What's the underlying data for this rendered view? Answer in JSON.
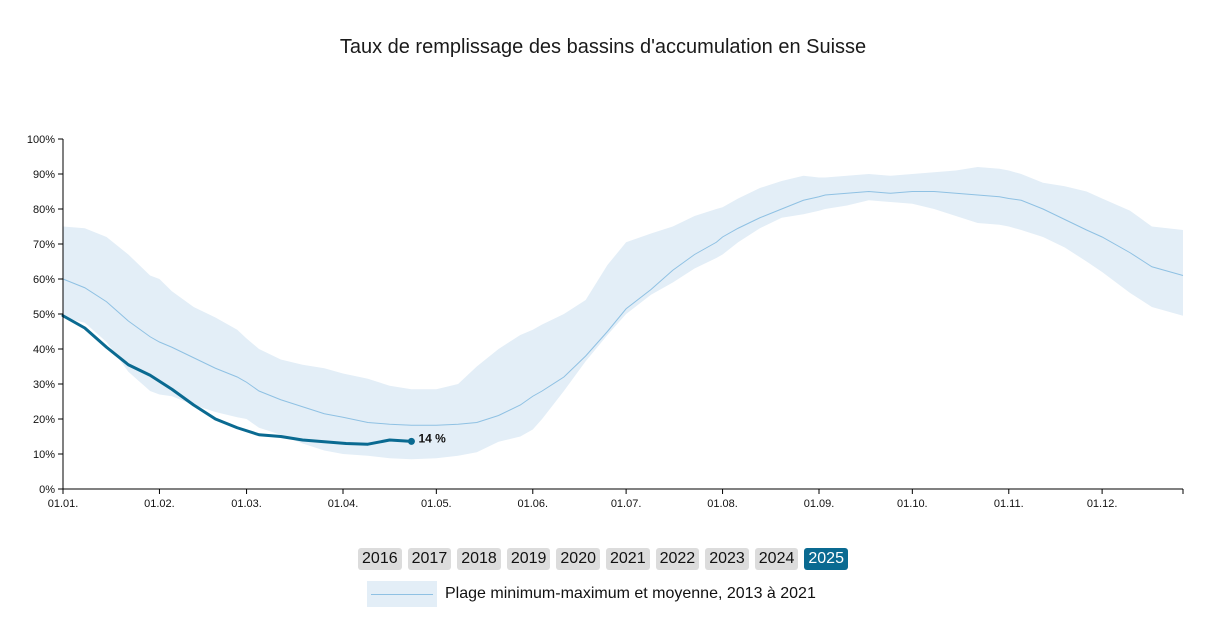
{
  "chart_data": {
    "type": "line",
    "title": "Taux de remplissage des bassins d'accumulation en Suisse",
    "xlabel": "",
    "ylabel": "",
    "ylim": [
      0,
      100
    ],
    "xlim": [
      0,
      360
    ],
    "x_ticks": [
      "01.01.",
      "01.02.",
      "01.03.",
      "01.04.",
      "01.05.",
      "01.06.",
      "01.07.",
      "01.08.",
      "01.09.",
      "01.10.",
      "01.11.",
      "01.12."
    ],
    "x_tick_days": [
      0,
      31,
      59,
      90,
      120,
      151,
      181,
      212,
      243,
      273,
      304,
      334
    ],
    "y_ticks": [
      "0%",
      "10%",
      "20%",
      "30%",
      "40%",
      "50%",
      "60%",
      "70%",
      "80%",
      "90%",
      "100%"
    ],
    "y_tick_values": [
      0,
      10,
      20,
      30,
      40,
      50,
      60,
      70,
      80,
      90,
      100
    ],
    "grid": false,
    "legend_position": "bottom",
    "colors": {
      "band": "#e3eef7",
      "mean_line": "#8fc1e3",
      "current_line": "#0a6a91"
    },
    "range": {
      "name": "Plage minimum-maximum et moyenne, 2013 à 2021",
      "x": [
        0,
        7,
        14,
        21,
        28,
        31,
        35,
        42,
        49,
        56,
        59,
        63,
        70,
        77,
        84,
        90,
        98,
        105,
        112,
        120,
        127,
        133,
        140,
        147,
        151,
        154,
        161,
        168,
        175,
        181,
        189,
        196,
        203,
        210,
        212,
        217,
        224,
        231,
        238,
        243,
        245,
        252,
        259,
        266,
        273,
        280,
        287,
        294,
        301,
        304,
        308,
        315,
        322,
        329,
        334,
        343,
        350,
        360
      ],
      "max": [
        75,
        74.5,
        72,
        67,
        61,
        60,
        56.5,
        52,
        49,
        45.5,
        43,
        40,
        37,
        35.5,
        34.5,
        33,
        31.5,
        29.5,
        28.5,
        28.5,
        30,
        35,
        40,
        44,
        45.5,
        47,
        50,
        54,
        64,
        70.5,
        73,
        75,
        78,
        80,
        80.5,
        83,
        86,
        88,
        89.5,
        89,
        89,
        89.5,
        90,
        89.5,
        90,
        90.5,
        91,
        92,
        91.5,
        91,
        90,
        87.5,
        86.5,
        85,
        83,
        79.5,
        75,
        74
      ],
      "mean": [
        60,
        57.5,
        53.5,
        48,
        43.5,
        42,
        40.5,
        37.5,
        34.5,
        32,
        30.5,
        28,
        25.5,
        23.5,
        21.5,
        20.5,
        19,
        18.5,
        18.2,
        18.2,
        18.5,
        19,
        21,
        24,
        26.5,
        28,
        32,
        38,
        45,
        51.5,
        57,
        62.5,
        67,
        70.5,
        72,
        74.5,
        77.5,
        80,
        82.5,
        83.5,
        84,
        84.5,
        85,
        84.5,
        85,
        85,
        84.5,
        84,
        83.5,
        83,
        82.5,
        80,
        77,
        74,
        72,
        67.5,
        63.5,
        61
      ],
      "min": [
        49,
        47.5,
        42,
        33.5,
        28,
        27,
        26.5,
        24,
        22,
        20.5,
        20,
        17.5,
        15.5,
        13,
        11,
        10,
        9.5,
        8.8,
        8.5,
        8.8,
        9.5,
        10.5,
        13.5,
        15,
        17,
        20,
        28,
        36.5,
        44,
        50,
        55.5,
        59,
        63,
        66,
        67,
        70.5,
        74.5,
        77.5,
        78.5,
        79.5,
        80,
        81,
        82.5,
        82,
        81.5,
        80,
        78,
        76,
        75.5,
        75,
        74,
        72,
        69,
        65,
        62,
        56,
        52,
        49.5
      ]
    },
    "series": [
      {
        "name": "2025",
        "x": [
          0,
          7,
          14,
          21,
          28,
          35,
          42,
          49,
          56,
          63,
          70,
          77,
          84,
          91,
          98,
          105,
          112
        ],
        "values": [
          49.5,
          46,
          40.5,
          35.5,
          32.5,
          28.5,
          24,
          20,
          17.5,
          15.5,
          15,
          14,
          13.5,
          13,
          12.8,
          14,
          13.6
        ]
      }
    ],
    "last_point_label": "14 %"
  },
  "years": [
    {
      "label": "2016",
      "active": false
    },
    {
      "label": "2017",
      "active": false
    },
    {
      "label": "2018",
      "active": false
    },
    {
      "label": "2019",
      "active": false
    },
    {
      "label": "2020",
      "active": false
    },
    {
      "label": "2021",
      "active": false
    },
    {
      "label": "2022",
      "active": false
    },
    {
      "label": "2023",
      "active": false
    },
    {
      "label": "2024",
      "active": false
    },
    {
      "label": "2025",
      "active": true
    }
  ],
  "legend": {
    "label": "Plage minimum-maximum et moyenne, 2013 à 2021"
  }
}
